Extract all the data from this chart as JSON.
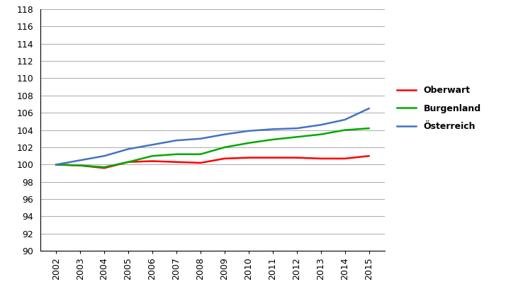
{
  "years": [
    2002,
    2003,
    2004,
    2005,
    2006,
    2007,
    2008,
    2009,
    2010,
    2011,
    2012,
    2013,
    2014,
    2015
  ],
  "oberwart": [
    100.0,
    99.9,
    99.6,
    100.3,
    100.4,
    100.3,
    100.2,
    100.7,
    100.8,
    100.8,
    100.8,
    100.7,
    100.7,
    101.0
  ],
  "burgenland": [
    100.0,
    99.9,
    99.7,
    100.3,
    101.0,
    101.2,
    101.2,
    102.0,
    102.5,
    102.9,
    103.2,
    103.5,
    104.0,
    104.2
  ],
  "oesterreich": [
    100.0,
    100.5,
    101.0,
    101.8,
    102.3,
    102.8,
    103.0,
    103.5,
    103.9,
    104.1,
    104.2,
    104.6,
    105.2,
    106.5
  ],
  "colors": {
    "oberwart": "#ff0000",
    "burgenland": "#00aa00",
    "oesterreich": "#4472c4"
  },
  "legend_labels": [
    "Oberwart",
    "Burgenland",
    "Österreich"
  ],
  "ylim": [
    90,
    118
  ],
  "yticks": [
    90,
    92,
    94,
    96,
    98,
    100,
    102,
    104,
    106,
    108,
    110,
    112,
    114,
    116,
    118
  ],
  "line_width": 1.8,
  "background_color": "#ffffff",
  "grid_color": "#aaaaaa"
}
